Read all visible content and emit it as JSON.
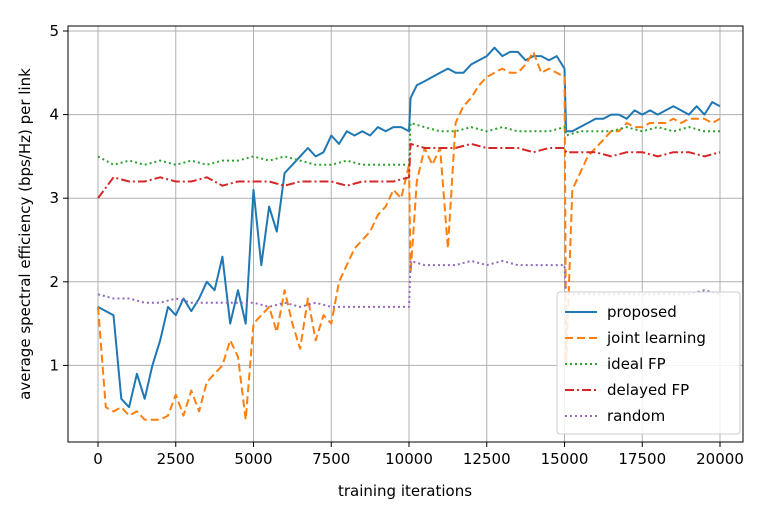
{
  "chart_data": {
    "type": "line",
    "xlabel": "training iterations",
    "ylabel": "average spectral efficiency (bps/Hz) per link",
    "xlim": [
      0,
      20000
    ],
    "ylim": [
      0,
      5
    ],
    "xticks": [
      "0",
      "2500",
      "5000",
      "7500",
      "10000",
      "12500",
      "15000",
      "17500",
      "20000"
    ],
    "yticks": [
      "1",
      "2",
      "3",
      "4",
      "5"
    ],
    "grid": true,
    "legend_position": "lower-right",
    "series": [
      {
        "name": "proposed",
        "color": "#1f77b4",
        "style": "solid",
        "x": [
          0,
          250,
          500,
          750,
          1000,
          1250,
          1500,
          1750,
          2000,
          2250,
          2500,
          2750,
          3000,
          3250,
          3500,
          3750,
          4000,
          4250,
          4500,
          4750,
          5000,
          5250,
          5500,
          5750,
          6000,
          6250,
          6500,
          6750,
          7000,
          7250,
          7500,
          7750,
          8000,
          8250,
          8500,
          8750,
          9000,
          9250,
          9500,
          9750,
          9999,
          10050,
          10250,
          10500,
          10750,
          11000,
          11250,
          11500,
          11750,
          12000,
          12250,
          12500,
          12750,
          13000,
          13250,
          13500,
          13750,
          14000,
          14250,
          14500,
          14750,
          14999,
          15050,
          15250,
          15500,
          15750,
          16000,
          16250,
          16500,
          16750,
          17000,
          17250,
          17500,
          17750,
          18000,
          18250,
          18500,
          18750,
          19000,
          19250,
          19500,
          19750,
          20000
        ],
        "values": [
          1.7,
          1.65,
          1.6,
          0.6,
          0.5,
          0.9,
          0.6,
          1.0,
          1.3,
          1.7,
          1.6,
          1.8,
          1.65,
          1.8,
          2.0,
          1.9,
          2.3,
          1.5,
          1.9,
          1.5,
          3.1,
          2.2,
          2.9,
          2.6,
          3.3,
          3.4,
          3.5,
          3.6,
          3.5,
          3.55,
          3.75,
          3.65,
          3.8,
          3.75,
          3.8,
          3.75,
          3.85,
          3.8,
          3.85,
          3.85,
          3.8,
          4.2,
          4.35,
          4.4,
          4.45,
          4.5,
          4.55,
          4.5,
          4.5,
          4.6,
          4.65,
          4.7,
          4.8,
          4.7,
          4.75,
          4.75,
          4.65,
          4.7,
          4.7,
          4.65,
          4.7,
          4.55,
          3.8,
          3.8,
          3.85,
          3.9,
          3.95,
          3.95,
          4.0,
          4.0,
          3.95,
          4.05,
          4.0,
          4.05,
          4.0,
          4.05,
          4.1,
          4.05,
          4.0,
          4.1,
          4.0,
          4.15,
          4.1
        ]
      },
      {
        "name": "joint learning",
        "color": "#ff7f0e",
        "style": "dashed",
        "x": [
          0,
          250,
          500,
          750,
          1000,
          1250,
          1500,
          1750,
          2000,
          2250,
          2500,
          2750,
          3000,
          3250,
          3500,
          3750,
          4000,
          4250,
          4500,
          4750,
          5000,
          5250,
          5500,
          5750,
          6000,
          6250,
          6500,
          6750,
          7000,
          7250,
          7500,
          7750,
          8000,
          8250,
          8500,
          8750,
          9000,
          9250,
          9500,
          9750,
          9999,
          10050,
          10250,
          10500,
          10750,
          11000,
          11250,
          11500,
          11750,
          12000,
          12250,
          12500,
          12750,
          13000,
          13250,
          13500,
          13750,
          14000,
          14250,
          14500,
          14750,
          14999,
          15050,
          15250,
          15500,
          15750,
          16000,
          16250,
          16500,
          16750,
          17000,
          17250,
          17500,
          17750,
          18000,
          18250,
          18500,
          18750,
          19000,
          19250,
          19500,
          19750,
          20000
        ],
        "values": [
          1.7,
          0.5,
          0.45,
          0.5,
          0.4,
          0.45,
          0.35,
          0.35,
          0.35,
          0.4,
          0.65,
          0.4,
          0.7,
          0.45,
          0.8,
          0.9,
          1.0,
          1.3,
          1.1,
          0.35,
          1.5,
          1.6,
          1.7,
          1.4,
          1.9,
          1.5,
          1.2,
          1.8,
          1.3,
          1.6,
          1.5,
          2.0,
          2.2,
          2.4,
          2.5,
          2.6,
          2.8,
          2.9,
          3.1,
          3.0,
          3.4,
          2.1,
          3.2,
          3.6,
          3.4,
          3.6,
          2.4,
          3.9,
          4.1,
          4.2,
          4.35,
          4.45,
          4.5,
          4.55,
          4.5,
          4.5,
          4.6,
          4.75,
          4.5,
          4.55,
          4.5,
          4.45,
          1.0,
          3.1,
          3.3,
          3.5,
          3.6,
          3.7,
          3.8,
          3.8,
          3.9,
          3.85,
          3.85,
          3.9,
          3.9,
          3.9,
          3.95,
          3.9,
          3.95,
          3.95,
          3.95,
          3.9,
          3.95
        ]
      },
      {
        "name": "ideal FP",
        "color": "#2ca02c",
        "style": "dotted",
        "x": [
          0,
          500,
          1000,
          1500,
          2000,
          2500,
          3000,
          3500,
          4000,
          4500,
          5000,
          5500,
          6000,
          6500,
          7000,
          7500,
          8000,
          8500,
          9000,
          9500,
          9999,
          10050,
          10500,
          11000,
          11500,
          12000,
          12500,
          13000,
          13500,
          14000,
          14500,
          14999,
          15050,
          15500,
          16000,
          16500,
          17000,
          17500,
          18000,
          18500,
          19000,
          19500,
          20000
        ],
        "values": [
          3.5,
          3.4,
          3.45,
          3.4,
          3.45,
          3.4,
          3.45,
          3.4,
          3.45,
          3.45,
          3.5,
          3.45,
          3.5,
          3.45,
          3.4,
          3.4,
          3.45,
          3.4,
          3.4,
          3.4,
          3.4,
          3.9,
          3.85,
          3.8,
          3.8,
          3.85,
          3.8,
          3.85,
          3.8,
          3.8,
          3.8,
          3.85,
          3.75,
          3.8,
          3.8,
          3.8,
          3.85,
          3.8,
          3.85,
          3.8,
          3.85,
          3.8,
          3.8
        ]
      },
      {
        "name": "delayed FP",
        "color": "#d62728",
        "style": "dashdot",
        "x": [
          0,
          500,
          1000,
          1500,
          2000,
          2500,
          3000,
          3500,
          4000,
          4500,
          5000,
          5500,
          6000,
          6500,
          7000,
          7500,
          8000,
          8500,
          9000,
          9500,
          9999,
          10050,
          10500,
          11000,
          11500,
          12000,
          12500,
          13000,
          13500,
          14000,
          14500,
          14999,
          15050,
          15500,
          16000,
          16500,
          17000,
          17500,
          18000,
          18500,
          19000,
          19500,
          20000
        ],
        "values": [
          3.0,
          3.25,
          3.2,
          3.2,
          3.25,
          3.2,
          3.2,
          3.25,
          3.15,
          3.2,
          3.2,
          3.2,
          3.15,
          3.2,
          3.2,
          3.2,
          3.15,
          3.2,
          3.2,
          3.2,
          3.25,
          3.65,
          3.6,
          3.6,
          3.6,
          3.65,
          3.6,
          3.6,
          3.6,
          3.55,
          3.6,
          3.6,
          3.55,
          3.55,
          3.55,
          3.5,
          3.55,
          3.55,
          3.5,
          3.55,
          3.55,
          3.5,
          3.55
        ]
      },
      {
        "name": "random",
        "color": "#9467bd",
        "style": "dotted",
        "x": [
          0,
          500,
          1000,
          1500,
          2000,
          2500,
          3000,
          3500,
          4000,
          4500,
          5000,
          5500,
          6000,
          6500,
          7000,
          7500,
          8000,
          8500,
          9000,
          9500,
          9999,
          10050,
          10500,
          11000,
          11500,
          12000,
          12500,
          13000,
          13500,
          14000,
          14500,
          14999,
          15050,
          15500,
          16000,
          16500,
          17000,
          17500,
          18000,
          18500,
          19000,
          19500,
          20000
        ],
        "values": [
          1.85,
          1.8,
          1.8,
          1.75,
          1.75,
          1.8,
          1.75,
          1.75,
          1.75,
          1.75,
          1.75,
          1.7,
          1.75,
          1.7,
          1.75,
          1.7,
          1.7,
          1.7,
          1.7,
          1.7,
          1.7,
          2.25,
          2.2,
          2.2,
          2.2,
          2.25,
          2.2,
          2.25,
          2.2,
          2.2,
          2.2,
          2.2,
          1.85,
          1.85,
          1.85,
          1.85,
          1.85,
          1.85,
          1.85,
          1.85,
          1.85,
          1.9,
          1.85
        ]
      }
    ]
  }
}
